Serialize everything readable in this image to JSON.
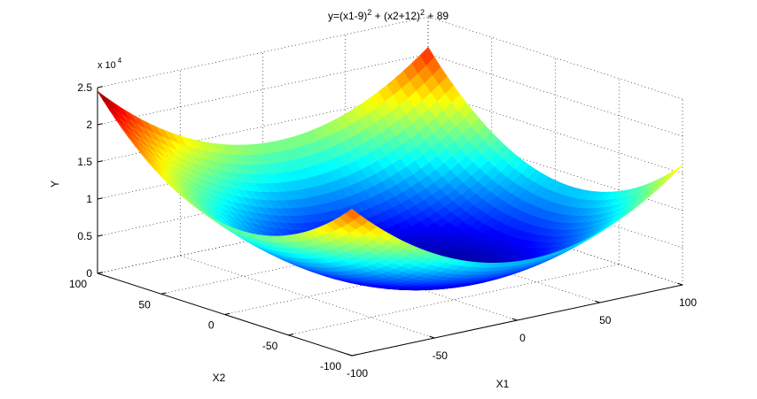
{
  "chart_data": {
    "type": "surface",
    "title": "y=(x1-9)^2 + (x2+12)^2 + 89",
    "title_parts": {
      "t1": "y=(x1-9)",
      "sup1": "2",
      "t2": " + (x2+12)",
      "sup2": "2",
      "t3": " + 89"
    },
    "formula": {
      "a": 9,
      "b": -12,
      "c": 89
    },
    "x1": {
      "label": "X1",
      "range": [
        -100,
        100
      ],
      "ticks": [
        "-100",
        "-50",
        "0",
        "50",
        "100"
      ]
    },
    "x2": {
      "label": "X2",
      "range": [
        -100,
        100
      ],
      "ticks": [
        "-100",
        "-50",
        "0",
        "50",
        "100"
      ]
    },
    "y": {
      "label": "Y",
      "range": [
        0,
        25000
      ],
      "tick_values": [
        0,
        5000,
        10000,
        15000,
        20000,
        25000
      ],
      "ticks": [
        "0",
        "0.5",
        "1",
        "1.5",
        "2",
        "2.5"
      ],
      "exponent_prefix": "x 10",
      "exponent": "4"
    },
    "grid": true,
    "box": true,
    "colormap": "jet",
    "grid_points": 41
  }
}
